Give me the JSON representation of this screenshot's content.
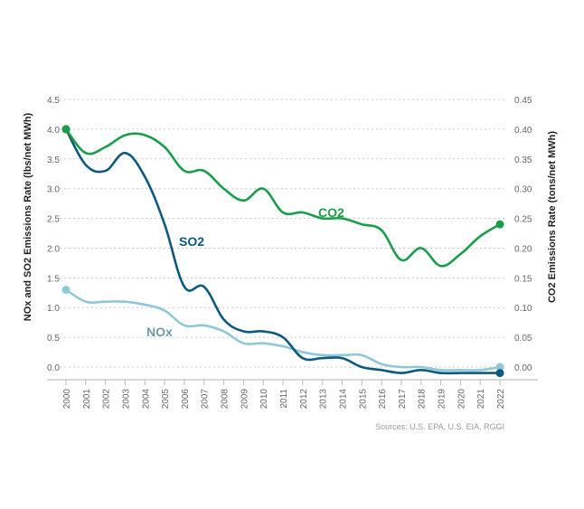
{
  "chart_data": {
    "type": "line",
    "x": [
      2000,
      2001,
      2002,
      2003,
      2004,
      2005,
      2006,
      2007,
      2008,
      2009,
      2010,
      2011,
      2012,
      2013,
      2014,
      2015,
      2016,
      2017,
      2018,
      2019,
      2020,
      2021,
      2022
    ],
    "x_tick_labels": [
      "2000",
      "2001",
      "2002",
      "2003",
      "2004",
      "2005",
      "2006",
      "2007",
      "2008",
      "2009",
      "2010",
      "2011",
      "2012",
      "2013",
      "2014",
      "2015",
      "2016",
      "2017",
      "2018",
      "2019",
      "2020",
      "2021",
      "2022"
    ],
    "left_axis": {
      "label": "NOx and SO2 Emissions Rate (lbs/net MWh)",
      "ylim": [
        0,
        4.5
      ],
      "ticks": [
        "0.0",
        "0.5",
        "1.0",
        "1.5",
        "2.0",
        "2.5",
        "3.0",
        "3.5",
        "4.0",
        "4.5"
      ]
    },
    "right_axis": {
      "label": "CO2 Emissions Rate (tons/net MWh)",
      "ylim": [
        0,
        0.45
      ],
      "ticks": [
        "0.00",
        "0.05",
        "0.10",
        "0.15",
        "0.20",
        "0.25",
        "0.30",
        "0.35",
        "0.40",
        "0.45"
      ]
    },
    "series": [
      {
        "name": "CO2",
        "axis": "right",
        "color": "#1a9e4b",
        "values": [
          0.4,
          0.36,
          0.37,
          0.39,
          0.39,
          0.37,
          0.33,
          0.33,
          0.3,
          0.28,
          0.3,
          0.26,
          0.26,
          0.25,
          0.25,
          0.24,
          0.23,
          0.18,
          0.2,
          0.17,
          0.19,
          0.22,
          0.24
        ]
      },
      {
        "name": "SO2",
        "axis": "left",
        "color": "#0d5a7e",
        "values": [
          4.0,
          3.4,
          3.3,
          3.6,
          3.2,
          2.4,
          1.35,
          1.35,
          0.8,
          0.6,
          0.6,
          0.5,
          0.15,
          0.15,
          0.15,
          0.0,
          -0.05,
          -0.1,
          -0.05,
          -0.1,
          -0.1,
          -0.1,
          -0.1
        ]
      },
      {
        "name": "NOx",
        "axis": "left",
        "color": "#8ec8d8",
        "values": [
          1.3,
          1.1,
          1.1,
          1.1,
          1.05,
          0.95,
          0.7,
          0.7,
          0.6,
          0.4,
          0.4,
          0.35,
          0.25,
          0.2,
          0.2,
          0.2,
          0.05,
          0.0,
          0.0,
          -0.05,
          -0.05,
          -0.05,
          0.0
        ]
      }
    ],
    "series_labels": {
      "co2": "CO2",
      "so2": "SO2",
      "nox": "NOx"
    },
    "grid": true,
    "legend": "inline",
    "source": "Sources: U.S. EPA, U.S. EIA, RGGI"
  }
}
